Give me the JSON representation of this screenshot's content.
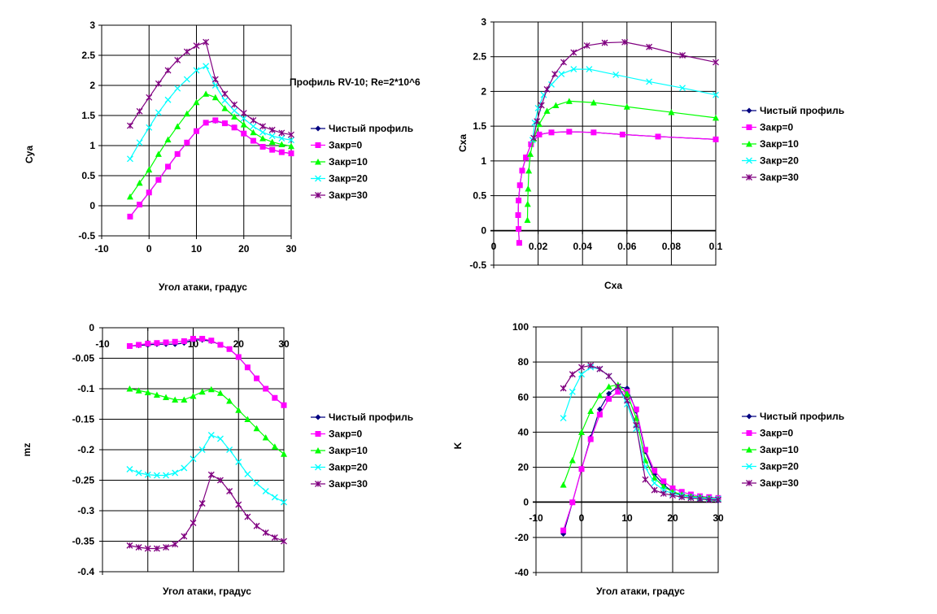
{
  "annotation": "Профиль RV-10; Re=2*10^6",
  "series_styles": [
    {
      "name": "Чистый профиль",
      "color": "#000080",
      "marker": "diamond"
    },
    {
      "name": "Закр=0",
      "color": "#ff00ff",
      "marker": "square"
    },
    {
      "name": "Закр=10",
      "color": "#00ff00",
      "marker": "triangle"
    },
    {
      "name": "Закр=20",
      "color": "#00ffff",
      "marker": "x"
    },
    {
      "name": "Закр=30",
      "color": "#800080",
      "marker": "star"
    }
  ],
  "chart_data": [
    {
      "type": "line",
      "xlabel": "Угол атаки, градус",
      "ylabel": "Cya",
      "xlim": [
        -10,
        30
      ],
      "ylim": [
        -0.5,
        3
      ],
      "xticks": [
        -10,
        0,
        10,
        20,
        30
      ],
      "xtick_labels": [
        "-10",
        "0",
        "10",
        "20",
        "30"
      ],
      "yticks": [
        -0.5,
        0,
        0.5,
        1,
        1.5,
        2,
        2.5,
        3
      ],
      "ytick_labels": [
        "-0.5",
        "0",
        "0.5",
        "1",
        "1.5",
        "2",
        "2.5",
        "3"
      ],
      "grid": true,
      "legend": "right",
      "series": [
        {
          "name": "Чистый профиль",
          "x": [
            -4,
            -2,
            0,
            2,
            4,
            6,
            8,
            10,
            12,
            14,
            16,
            18,
            20,
            22,
            24,
            26,
            28,
            30
          ],
          "y": [
            -0.18,
            0.02,
            0.22,
            0.43,
            0.65,
            0.86,
            1.05,
            1.24,
            1.38,
            1.41,
            1.37,
            1.3,
            1.2,
            1.08,
            0.98,
            0.93,
            0.89,
            0.87
          ]
        },
        {
          "name": "Закр=0",
          "x": [
            -4,
            -2,
            0,
            2,
            4,
            6,
            8,
            10,
            12,
            14,
            16,
            18,
            20,
            22,
            24,
            26,
            28,
            30
          ],
          "y": [
            -0.18,
            0.02,
            0.22,
            0.43,
            0.65,
            0.86,
            1.05,
            1.24,
            1.38,
            1.42,
            1.37,
            1.3,
            1.2,
            1.08,
            0.98,
            0.93,
            0.89,
            0.87
          ]
        },
        {
          "name": "Закр=10",
          "x": [
            -4,
            -2,
            0,
            2,
            4,
            6,
            8,
            10,
            12,
            14,
            16,
            18,
            20,
            22,
            24,
            26,
            28,
            30
          ],
          "y": [
            0.15,
            0.38,
            0.6,
            0.86,
            1.1,
            1.32,
            1.53,
            1.72,
            1.86,
            1.8,
            1.62,
            1.48,
            1.35,
            1.22,
            1.12,
            1.06,
            1.02,
            0.99
          ]
        },
        {
          "name": "Закр=20",
          "x": [
            -4,
            -2,
            0,
            2,
            4,
            6,
            8,
            10,
            12,
            14,
            16,
            18,
            20,
            22,
            24,
            26,
            28,
            30
          ],
          "y": [
            0.78,
            1.05,
            1.3,
            1.55,
            1.76,
            1.95,
            2.1,
            2.25,
            2.32,
            2.0,
            1.75,
            1.58,
            1.45,
            1.32,
            1.22,
            1.16,
            1.12,
            1.09
          ]
        },
        {
          "name": "Закр=30",
          "x": [
            -4,
            -2,
            0,
            2,
            4,
            6,
            8,
            10,
            12,
            14,
            16,
            18,
            20,
            22,
            24,
            26,
            28,
            30
          ],
          "y": [
            1.33,
            1.57,
            1.8,
            2.03,
            2.25,
            2.42,
            2.56,
            2.66,
            2.72,
            2.1,
            1.86,
            1.68,
            1.54,
            1.42,
            1.32,
            1.26,
            1.21,
            1.18
          ]
        }
      ]
    },
    {
      "type": "line",
      "xlabel": "Cxa",
      "ylabel": "Cxa",
      "xlim": [
        0,
        0.1
      ],
      "ylim": [
        -0.5,
        3
      ],
      "xticks": [
        0,
        0.02,
        0.04,
        0.06,
        0.08,
        0.1
      ],
      "xtick_labels": [
        "0",
        "0.02",
        "0.04",
        "0.06",
        "0.08",
        "0.1"
      ],
      "yticks": [
        -0.5,
        0,
        0.5,
        1,
        1.5,
        2,
        2.5,
        3
      ],
      "ytick_labels": [
        "-0.5",
        "0",
        "0.5",
        "1",
        "1.5",
        "2",
        "2.5",
        "3"
      ],
      "grid": true,
      "legend": "right",
      "series": [
        {
          "name": "Чистый профиль",
          "x": [
            0.0115,
            0.0112,
            0.011,
            0.0112,
            0.0118,
            0.0128,
            0.0145,
            0.0168,
            0.0205,
            0.026,
            0.034,
            0.045,
            0.058,
            0.074,
            0.1
          ],
          "y": [
            -0.18,
            0.02,
            0.22,
            0.43,
            0.65,
            0.86,
            1.05,
            1.24,
            1.38,
            1.41,
            1.42,
            1.41,
            1.38,
            1.35,
            1.31
          ]
        },
        {
          "name": "Закр=0",
          "x": [
            0.0115,
            0.0112,
            0.011,
            0.0112,
            0.0118,
            0.0128,
            0.0145,
            0.0168,
            0.0205,
            0.026,
            0.034,
            0.045,
            0.058,
            0.074,
            0.1
          ],
          "y": [
            -0.18,
            0.02,
            0.22,
            0.43,
            0.65,
            0.86,
            1.05,
            1.24,
            1.38,
            1.41,
            1.42,
            1.41,
            1.38,
            1.35,
            1.31
          ]
        },
        {
          "name": "Закр=10",
          "x": [
            0.0152,
            0.0153,
            0.0155,
            0.0158,
            0.0165,
            0.018,
            0.0205,
            0.024,
            0.028,
            0.034,
            0.045,
            0.06,
            0.08,
            0.1
          ],
          "y": [
            0.15,
            0.38,
            0.6,
            0.86,
            1.1,
            1.32,
            1.53,
            1.72,
            1.8,
            1.86,
            1.84,
            1.78,
            1.7,
            1.62
          ]
        },
        {
          "name": "Закр=20",
          "x": [
            0.0175,
            0.0185,
            0.02,
            0.0225,
            0.026,
            0.0305,
            0.036,
            0.043,
            0.055,
            0.07,
            0.085,
            0.1
          ],
          "y": [
            1.3,
            1.55,
            1.76,
            1.95,
            2.1,
            2.25,
            2.32,
            2.32,
            2.24,
            2.14,
            2.05,
            1.95
          ]
        },
        {
          "name": "Закр=30",
          "x": [
            0.018,
            0.0195,
            0.0215,
            0.024,
            0.0275,
            0.0315,
            0.036,
            0.042,
            0.05,
            0.059,
            0.07,
            0.085,
            0.1
          ],
          "y": [
            1.33,
            1.57,
            1.8,
            2.03,
            2.25,
            2.42,
            2.56,
            2.66,
            2.7,
            2.71,
            2.64,
            2.52,
            2.42
          ]
        }
      ]
    },
    {
      "type": "line",
      "xlabel": "Угол атаки, градус",
      "ylabel": "mz",
      "xlim": [
        -10,
        30
      ],
      "ylim": [
        -0.4,
        0
      ],
      "xticks": [
        -10,
        0,
        10,
        20,
        30
      ],
      "xtick_labels": [
        "-10",
        "0",
        "10",
        "20",
        "30"
      ],
      "yticks": [
        -0.4,
        -0.35,
        -0.3,
        -0.25,
        -0.2,
        -0.15,
        -0.1,
        -0.05,
        0
      ],
      "ytick_labels": [
        "-0.4",
        "-0.35",
        "-0.3",
        "-0.25",
        "-0.2",
        "-0.15",
        "-0.1",
        "-0.05",
        "0"
      ],
      "grid": true,
      "legend": "right",
      "series": [
        {
          "name": "Чистый профиль",
          "x": [
            -4,
            -2,
            0,
            2,
            4,
            6,
            8,
            10,
            12,
            14,
            16,
            18,
            20,
            22,
            24,
            26,
            28,
            30
          ],
          "y": [
            -0.03,
            -0.029,
            -0.028,
            -0.027,
            -0.027,
            -0.027,
            -0.025,
            -0.02,
            -0.02,
            -0.022,
            -0.028,
            -0.035,
            -0.048,
            -0.065,
            -0.083,
            -0.1,
            -0.115,
            -0.127
          ]
        },
        {
          "name": "Закр=0",
          "x": [
            -4,
            -2,
            0,
            2,
            4,
            6,
            8,
            10,
            12,
            14,
            16,
            18,
            20,
            22,
            24,
            26,
            28,
            30
          ],
          "y": [
            -0.03,
            -0.028,
            -0.026,
            -0.025,
            -0.024,
            -0.023,
            -0.022,
            -0.018,
            -0.018,
            -0.021,
            -0.028,
            -0.035,
            -0.048,
            -0.065,
            -0.083,
            -0.1,
            -0.115,
            -0.127
          ]
        },
        {
          "name": "Закр=10",
          "x": [
            -4,
            -2,
            0,
            2,
            4,
            6,
            8,
            10,
            12,
            14,
            16,
            18,
            20,
            22,
            24,
            26,
            28,
            30
          ],
          "y": [
            -0.1,
            -0.103,
            -0.106,
            -0.11,
            -0.114,
            -0.118,
            -0.118,
            -0.112,
            -0.105,
            -0.101,
            -0.107,
            -0.12,
            -0.135,
            -0.15,
            -0.165,
            -0.18,
            -0.195,
            -0.207
          ]
        },
        {
          "name": "Закр=20",
          "x": [
            -4,
            -2,
            0,
            2,
            4,
            6,
            8,
            10,
            12,
            14,
            16,
            18,
            20,
            22,
            24,
            26,
            28,
            30
          ],
          "y": [
            -0.232,
            -0.238,
            -0.241,
            -0.242,
            -0.242,
            -0.238,
            -0.23,
            -0.215,
            -0.2,
            -0.176,
            -0.182,
            -0.2,
            -0.22,
            -0.24,
            -0.255,
            -0.268,
            -0.278,
            -0.286
          ]
        },
        {
          "name": "Закр=30",
          "x": [
            -4,
            -2,
            0,
            2,
            4,
            6,
            8,
            10,
            12,
            14,
            16,
            18,
            20,
            22,
            24,
            26,
            28,
            30
          ],
          "y": [
            -0.357,
            -0.36,
            -0.362,
            -0.362,
            -0.36,
            -0.355,
            -0.342,
            -0.32,
            -0.288,
            -0.241,
            -0.25,
            -0.268,
            -0.29,
            -0.31,
            -0.325,
            -0.336,
            -0.344,
            -0.35
          ]
        }
      ]
    },
    {
      "type": "line",
      "xlabel": "Угол атаки, градус",
      "ylabel": "K",
      "xlim": [
        -10,
        30
      ],
      "ylim": [
        -40,
        100
      ],
      "xticks": [
        -10,
        0,
        10,
        20,
        30
      ],
      "xtick_labels": [
        "-10",
        "0",
        "10",
        "20",
        "30"
      ],
      "yticks": [
        -40,
        -20,
        0,
        20,
        40,
        60,
        80,
        100
      ],
      "ytick_labels": [
        "-40",
        "-20",
        "0",
        "20",
        "40",
        "60",
        "80",
        "100"
      ],
      "grid": true,
      "legend": "right",
      "series": [
        {
          "name": "Чистый профиль",
          "x": [
            -4,
            -2,
            0,
            2,
            4,
            6,
            8,
            10,
            12,
            14,
            16,
            18,
            20,
            22,
            24,
            26,
            28,
            30
          ],
          "y": [
            -18,
            0,
            19,
            37,
            53,
            62,
            66,
            65,
            52,
            29,
            16,
            10,
            6,
            4,
            3,
            2,
            1.5,
            1
          ]
        },
        {
          "name": "Закр=0",
          "x": [
            -4,
            -2,
            0,
            2,
            4,
            6,
            8,
            10,
            12,
            14,
            16,
            18,
            20,
            22,
            24,
            26,
            28,
            30
          ],
          "y": [
            -16,
            0,
            19,
            36,
            50,
            59,
            63,
            63,
            53,
            30,
            18,
            12,
            8,
            6,
            4.5,
            3.5,
            3,
            2.5
          ]
        },
        {
          "name": "Закр=10",
          "x": [
            -4,
            -2,
            0,
            2,
            4,
            6,
            8,
            10,
            12,
            14,
            16,
            18,
            20,
            22,
            24,
            26,
            28,
            30
          ],
          "y": [
            10,
            24,
            40,
            52,
            61,
            66,
            67,
            62,
            48,
            24,
            14,
            9,
            6,
            4.5,
            3.5,
            3,
            2.5,
            2
          ]
        },
        {
          "name": "Закр=20",
          "x": [
            -4,
            -2,
            0,
            2,
            4,
            6,
            8,
            10,
            12,
            14,
            16,
            18,
            20,
            22,
            24,
            26,
            28,
            30
          ],
          "y": [
            48,
            63,
            73,
            77,
            76,
            72,
            66,
            56,
            42,
            20,
            11,
            7,
            5,
            4,
            3,
            2.5,
            2,
            2
          ]
        },
        {
          "name": "Закр=30",
          "x": [
            -4,
            -2,
            0,
            2,
            4,
            6,
            8,
            10,
            12,
            14,
            16,
            18,
            20,
            22,
            24,
            26,
            28,
            30
          ],
          "y": [
            65,
            73,
            77,
            78,
            76,
            72,
            66,
            58,
            44,
            13,
            7,
            5,
            4,
            3,
            2.5,
            2,
            1.5,
            1.5
          ]
        }
      ]
    }
  ]
}
